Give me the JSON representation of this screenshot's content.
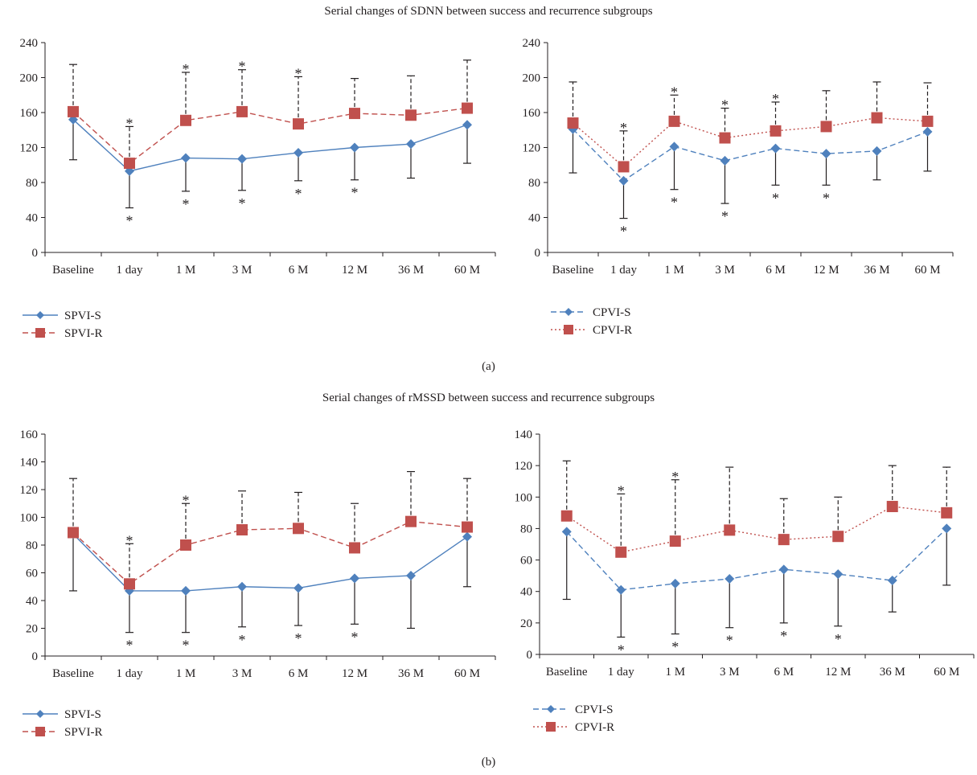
{
  "sections": [
    {
      "title": "Serial changes of SDNN between success and recurrence subgroups",
      "label": "(a)"
    },
    {
      "title": "Serial changes of rMSSD between success and recurrence subgroups",
      "label": "(b)"
    }
  ],
  "colors": {
    "success": "#4f81bd",
    "recurrence": "#c0504d",
    "axis": "#231f20",
    "error": "#231f20"
  },
  "chart_data": [
    {
      "type": "line",
      "panel": "(a) left",
      "categories": [
        "Baseline",
        "1 day",
        "1 M",
        "3 M",
        "6 M",
        "12 M",
        "36 M",
        "60 M"
      ],
      "ylim": [
        0,
        240
      ],
      "yticks": [
        0,
        40,
        80,
        120,
        160,
        200,
        240
      ],
      "legend_position": "bottom-left",
      "series": [
        {
          "name": "SPVI-S",
          "role": "success",
          "line": "solid",
          "marker": "diamond",
          "values": [
            152,
            93,
            108,
            107,
            114,
            120,
            124,
            146
          ],
          "err_lower": [
            106,
            51,
            70,
            71,
            82,
            83,
            85,
            102
          ],
          "stars_below": [
            1,
            2,
            3,
            4,
            5
          ]
        },
        {
          "name": "SPVI-R",
          "role": "recurrence",
          "line": "dashed",
          "marker": "square",
          "values": [
            161,
            102,
            151,
            161,
            147,
            159,
            157,
            165
          ],
          "err_upper": [
            215,
            144,
            206,
            209,
            201,
            199,
            202,
            220
          ],
          "stars_above": [
            1,
            2,
            3,
            4
          ]
        }
      ]
    },
    {
      "type": "line",
      "panel": "(a) right",
      "categories": [
        "Baseline",
        "1 day",
        "1 M",
        "3 M",
        "6 M",
        "12 M",
        "36 M",
        "60 M"
      ],
      "ylim": [
        0,
        240
      ],
      "yticks": [
        0,
        40,
        80,
        120,
        160,
        200,
        240
      ],
      "legend_position": "bottom-left",
      "series": [
        {
          "name": "CPVI-S",
          "role": "success",
          "line": "dashed",
          "marker": "diamond",
          "values": [
            141,
            82,
            121,
            105,
            119,
            113,
            116,
            138
          ],
          "err_lower": [
            91,
            39,
            72,
            56,
            77,
            77,
            83,
            93
          ],
          "stars_below": [
            1,
            2,
            3,
            4,
            5
          ]
        },
        {
          "name": "CPVI-R",
          "role": "recurrence",
          "line": "dotted",
          "marker": "square",
          "values": [
            148,
            98,
            150,
            131,
            139,
            144,
            154,
            150
          ],
          "err_upper": [
            195,
            139,
            180,
            165,
            172,
            185,
            195,
            194
          ],
          "stars_above": [
            1,
            2,
            3,
            4
          ]
        }
      ]
    },
    {
      "type": "line",
      "panel": "(b) left",
      "categories": [
        "Baseline",
        "1 day",
        "1 M",
        "3 M",
        "6 M",
        "12 M",
        "36 M",
        "60 M"
      ],
      "ylim": [
        0,
        160
      ],
      "yticks": [
        0,
        20,
        40,
        60,
        80,
        100,
        120,
        140,
        160
      ],
      "legend_position": "bottom-left",
      "series": [
        {
          "name": "SPVI-S",
          "role": "success",
          "line": "solid",
          "marker": "diamond",
          "values": [
            88,
            47,
            47,
            50,
            49,
            56,
            58,
            86
          ],
          "err_lower": [
            47,
            17,
            17,
            21,
            22,
            23,
            20,
            50
          ],
          "stars_below": [
            1,
            2,
            3,
            4,
            5
          ]
        },
        {
          "name": "SPVI-R",
          "role": "recurrence",
          "line": "dashed",
          "marker": "square",
          "values": [
            89,
            52,
            80,
            91,
            92,
            78,
            97,
            93
          ],
          "err_upper": [
            128,
            81,
            110,
            119,
            118,
            110,
            133,
            128
          ],
          "stars_above": [
            1,
            2
          ]
        }
      ]
    },
    {
      "type": "line",
      "panel": "(b) right",
      "categories": [
        "Baseline",
        "1 day",
        "1 M",
        "3 M",
        "6 M",
        "12 M",
        "36 M",
        "60 M"
      ],
      "ylim": [
        0,
        140
      ],
      "yticks": [
        0,
        20,
        40,
        60,
        80,
        100,
        120,
        140
      ],
      "legend_position": "bottom-left",
      "series": [
        {
          "name": "CPVI-S",
          "role": "success",
          "line": "dashed",
          "marker": "diamond",
          "values": [
            78,
            41,
            45,
            48,
            54,
            51,
            47,
            80
          ],
          "err_lower": [
            35,
            11,
            13,
            17,
            20,
            18,
            27,
            44
          ],
          "stars_below": [
            1,
            2,
            3,
            4,
            5
          ]
        },
        {
          "name": "CPVI-R",
          "role": "recurrence",
          "line": "dotted",
          "marker": "square",
          "values": [
            88,
            65,
            72,
            79,
            73,
            75,
            94,
            90
          ],
          "err_upper": [
            123,
            102,
            111,
            119,
            99,
            100,
            120,
            119
          ],
          "stars_above": [
            1,
            2
          ]
        }
      ]
    }
  ]
}
